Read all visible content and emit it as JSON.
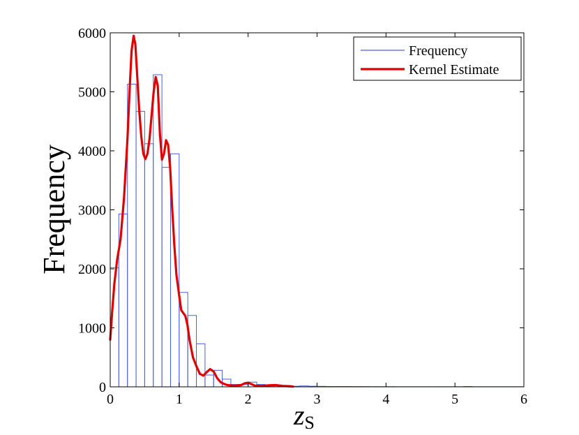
{
  "chart_data": {
    "type": "bar",
    "xlabel": "z",
    "xlabel_subscript": "S",
    "ylabel": "Frequency",
    "xlim": [
      0,
      6
    ],
    "ylim": [
      0,
      6000
    ],
    "xticks": [
      "0",
      "1",
      "2",
      "3",
      "4",
      "5",
      "6"
    ],
    "yticks": [
      "0",
      "1000",
      "2000",
      "3000",
      "4000",
      "5000",
      "6000"
    ],
    "grid": false,
    "legend_position": "top-right",
    "colors": {
      "histogram": "#4a5fd8",
      "kernel": "#e00000"
    },
    "series": [
      {
        "name": "Frequency",
        "kind": "histogram",
        "bin_width": 0.125,
        "bin_starts": [
          0,
          0.125,
          0.25,
          0.375,
          0.5,
          0.625,
          0.75,
          0.875,
          1.0,
          1.125,
          1.25,
          1.375,
          1.5,
          1.625,
          1.75,
          1.875,
          2.0,
          2.125,
          2.25,
          2.375,
          2.5,
          2.625,
          2.75,
          2.875,
          3.0,
          3.125,
          3.25,
          3.375,
          3.5,
          3.625,
          3.75,
          3.875,
          4.0,
          4.125,
          4.25,
          4.375,
          4.5,
          4.625,
          4.75,
          4.875,
          5.0,
          5.125,
          5.25,
          5.375,
          5.5,
          5.625,
          5.75,
          5.875
        ],
        "values": [
          2020,
          2930,
          5130,
          4670,
          4120,
          5290,
          3720,
          3950,
          1600,
          1210,
          730,
          200,
          280,
          130,
          40,
          40,
          80,
          40,
          20,
          30,
          20,
          10,
          15,
          10,
          8,
          5,
          5,
          5,
          4,
          4,
          3,
          3,
          3,
          2,
          2,
          2,
          2,
          2,
          2,
          2,
          2,
          5,
          2,
          2,
          2,
          2,
          2,
          2
        ]
      },
      {
        "name": "Kernel Estimate",
        "kind": "line",
        "x": [
          0,
          0.03,
          0.06,
          0.1,
          0.15,
          0.2,
          0.25,
          0.28,
          0.31,
          0.34,
          0.365,
          0.39,
          0.42,
          0.45,
          0.48,
          0.51,
          0.54,
          0.57,
          0.6,
          0.63,
          0.66,
          0.69,
          0.72,
          0.75,
          0.78,
          0.81,
          0.84,
          0.87,
          0.9,
          0.93,
          0.96,
          1.0,
          1.03,
          1.06,
          1.09,
          1.12,
          1.15,
          1.2,
          1.25,
          1.3,
          1.35,
          1.4,
          1.45,
          1.5,
          1.55,
          1.6,
          1.65,
          1.7,
          1.8,
          1.9,
          1.95,
          2.0,
          2.05,
          2.1,
          2.2,
          2.3,
          2.4,
          2.5,
          2.6,
          2.65
        ],
        "y": [
          800,
          1300,
          1750,
          2150,
          2500,
          3200,
          4200,
          5000,
          5700,
          5950,
          5800,
          5300,
          4700,
          4250,
          3950,
          3860,
          3950,
          4200,
          4600,
          5000,
          5250,
          5100,
          4300,
          3850,
          3950,
          4180,
          4100,
          3700,
          3000,
          2400,
          1900,
          1550,
          1300,
          1250,
          1200,
          1050,
          800,
          500,
          350,
          220,
          190,
          250,
          300,
          260,
          150,
          80,
          50,
          30,
          20,
          30,
          60,
          70,
          45,
          20,
          15,
          25,
          30,
          15,
          10,
          5
        ]
      }
    ]
  }
}
